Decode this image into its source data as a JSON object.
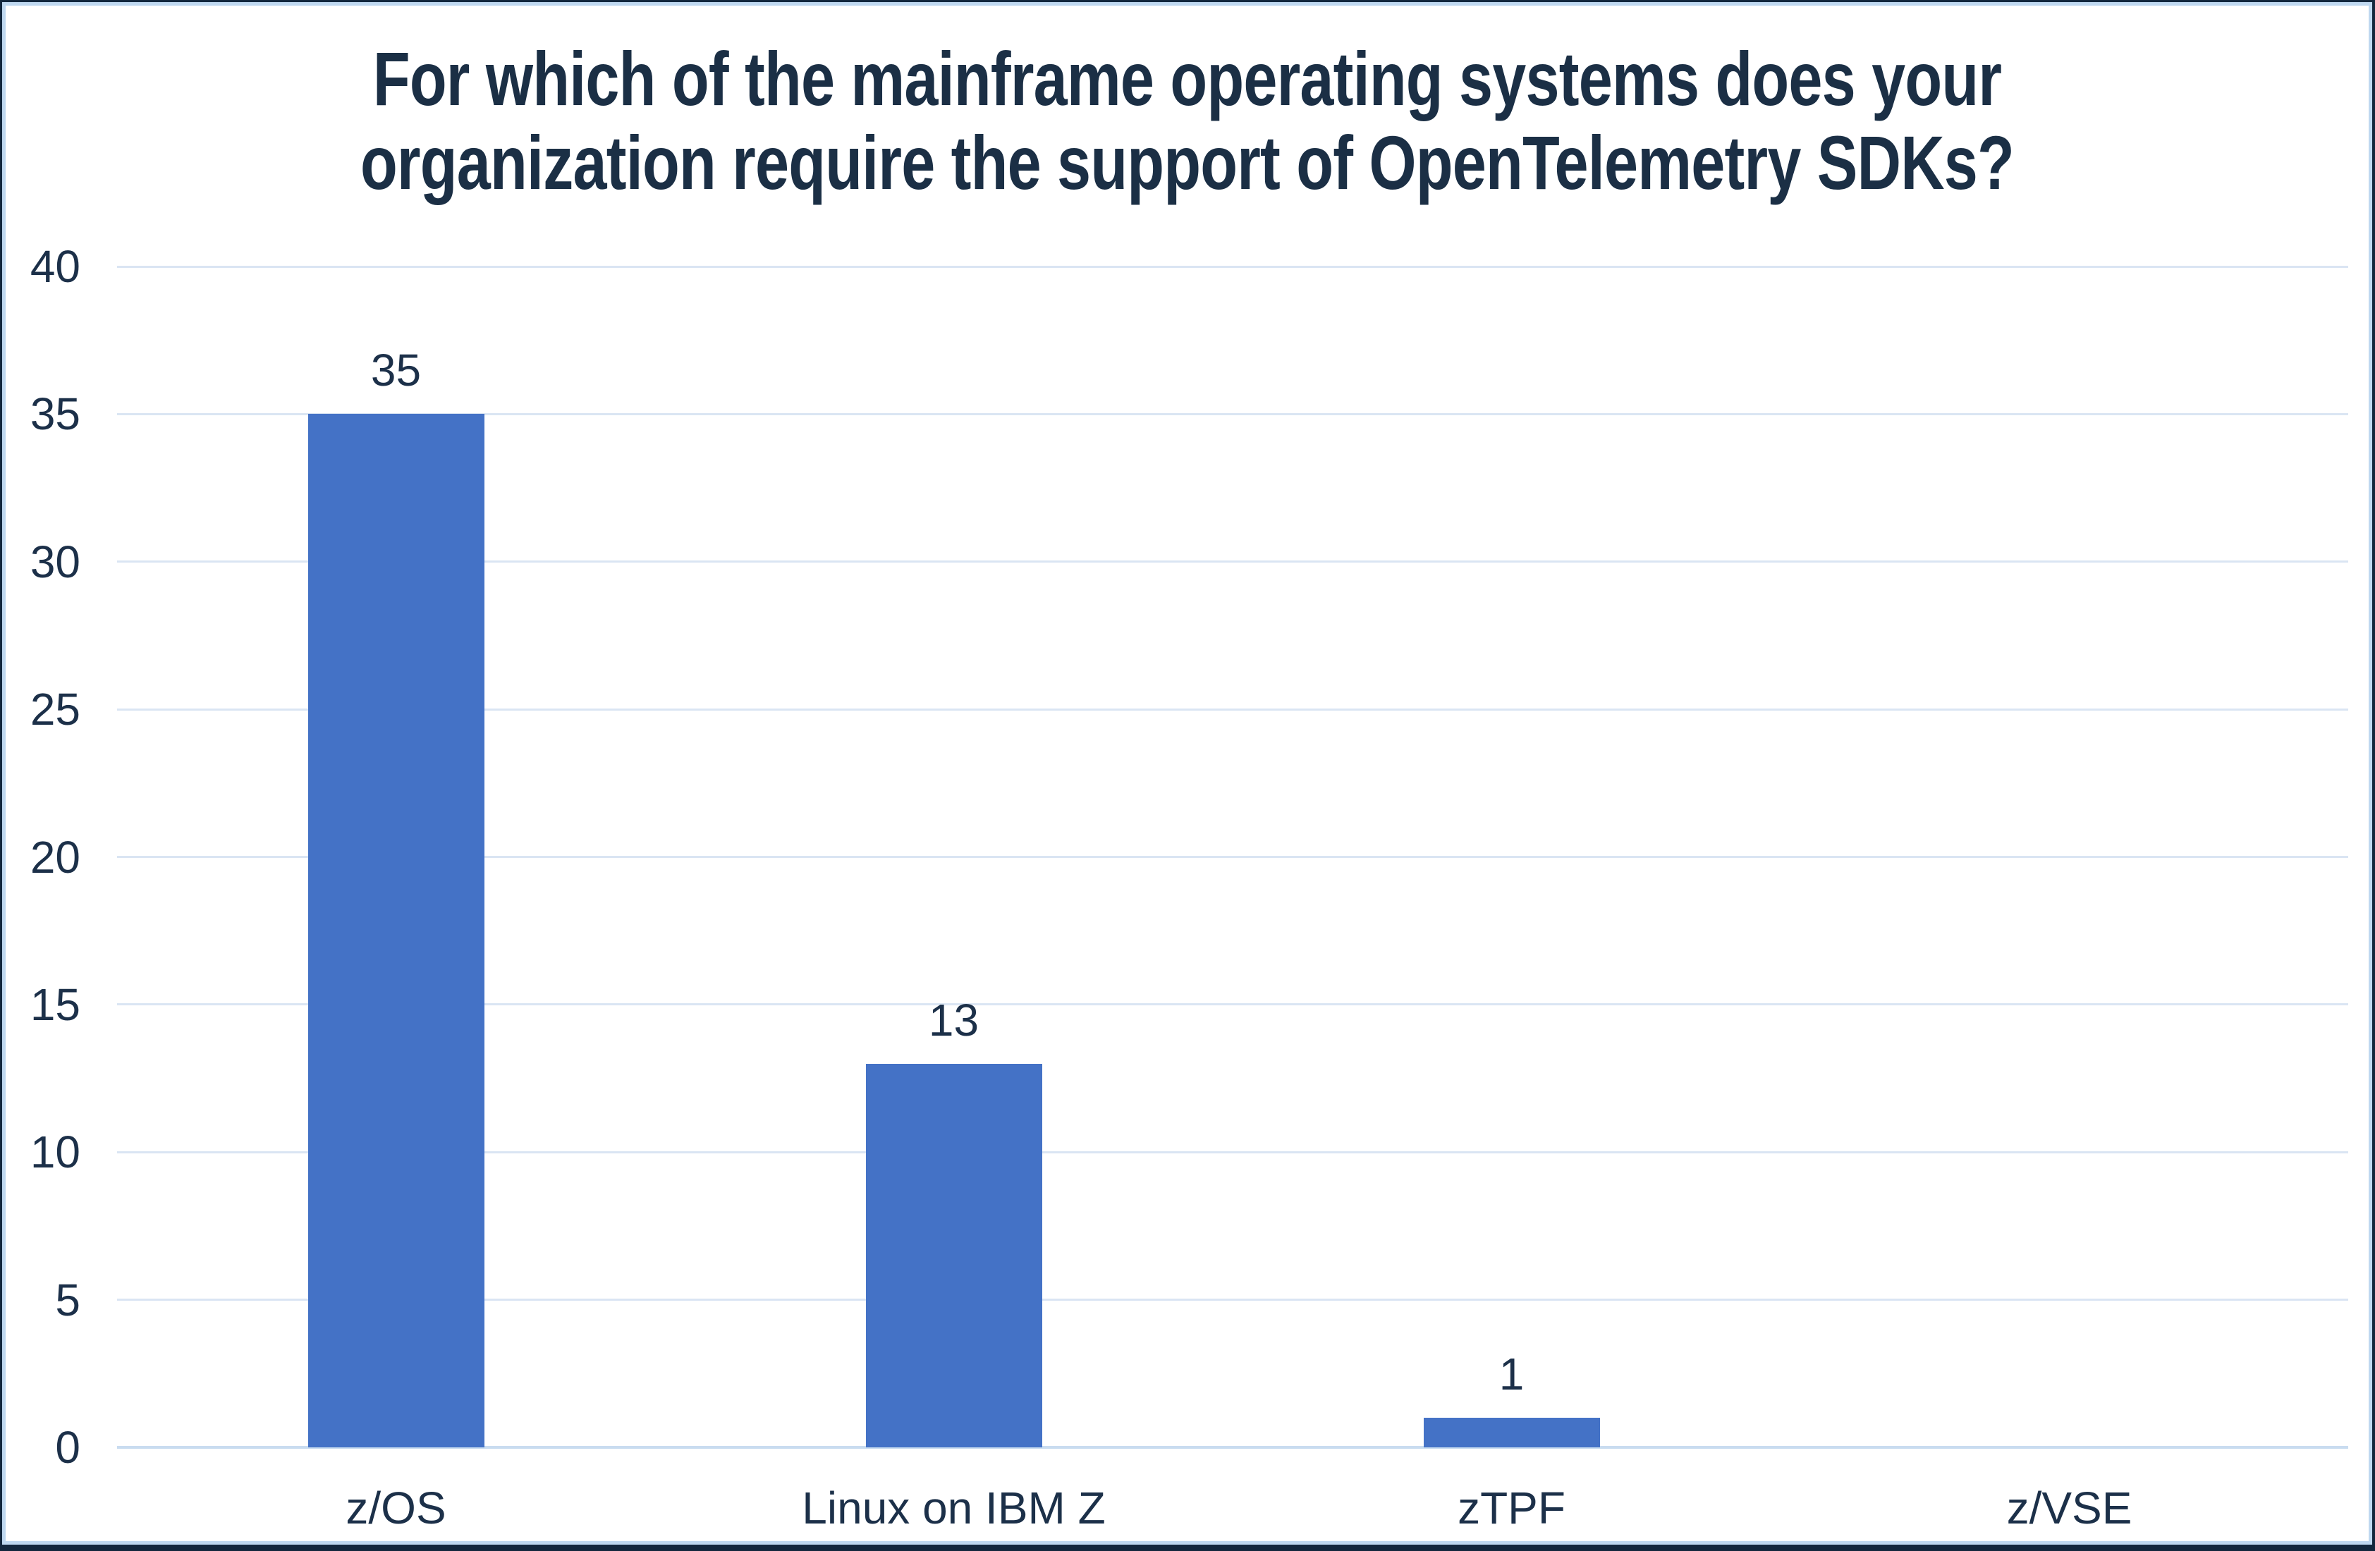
{
  "chart_data": {
    "type": "bar",
    "title": "For which of the mainframe operating systems does your organization require the support of OpenTelemetry SDKs?",
    "title_lines": [
      "For which of the mainframe operating systems does your",
      "organization require the support of OpenTelemetry SDKs?"
    ],
    "categories": [
      "z/OS",
      "Linux on IBM Z",
      "zTPF",
      "z/VSE"
    ],
    "values": [
      35,
      13,
      1,
      0
    ],
    "data_labels": [
      "35",
      "13",
      "1",
      ""
    ],
    "xlabel": "",
    "ylabel": "",
    "ylim": [
      0,
      40
    ],
    "yticks": [
      0,
      5,
      10,
      15,
      20,
      25,
      30,
      35,
      40
    ],
    "grid": true,
    "legend": "none",
    "colors": {
      "bar": "#4472C6",
      "text": "#1C3049",
      "title_text": "#1B2F45",
      "gridline": "#DAE5F3",
      "axis_line": "#C9DCF0",
      "chart_border": "#BFD8F0",
      "frame_border": "#13273D",
      "background": "#FFFFFF"
    }
  }
}
